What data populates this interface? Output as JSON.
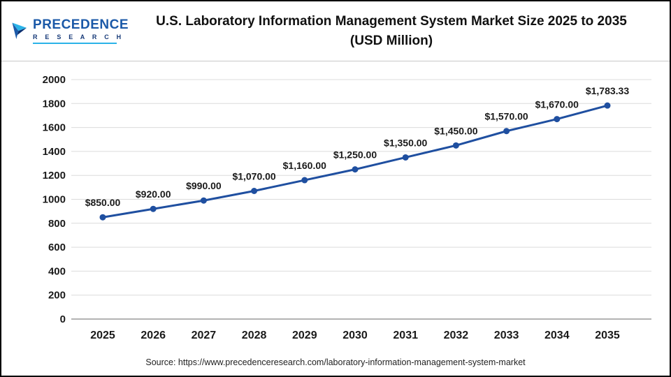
{
  "header": {
    "logo": {
      "line1": "PRECEDENCE",
      "line2": "R E S E A R C H"
    },
    "title_line1": "U.S. Laboratory Information Management System Market Size 2025 to 2035",
    "title_line2": "(USD Million)"
  },
  "chart_data": {
    "type": "line",
    "title": "U.S. Laboratory Information Management System Market Size 2025 to 2035 (USD Million)",
    "categories": [
      "2025",
      "2026",
      "2027",
      "2028",
      "2029",
      "2030",
      "2031",
      "2032",
      "2033",
      "2034",
      "2035"
    ],
    "values": [
      850,
      920,
      990,
      1070,
      1160,
      1250,
      1350,
      1450,
      1570,
      1670,
      1783.33
    ],
    "labels": [
      "$850.00",
      "$920.00",
      "$990.00",
      "$1,070.00",
      "$1,160.00",
      "$1,250.00",
      "$1,350.00",
      "$1,450.00",
      "$1,570.00",
      "$1,670.00",
      "$1,783.33"
    ],
    "xlabel": "",
    "ylabel": "",
    "ylim": [
      0,
      2000
    ],
    "ytick_step": 200,
    "grid": true,
    "legend_position": "none",
    "line_color": "#1f4fa0"
  },
  "footer": {
    "source": "Source: https://www.precedenceresearch.com/laboratory-information-management-system-market"
  }
}
